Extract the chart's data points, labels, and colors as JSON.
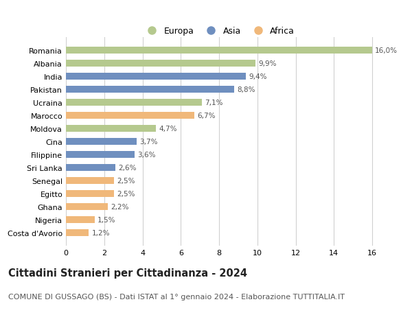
{
  "countries": [
    "Romania",
    "Albania",
    "India",
    "Pakistan",
    "Ucraina",
    "Marocco",
    "Moldova",
    "Cina",
    "Filippine",
    "Sri Lanka",
    "Senegal",
    "Egitto",
    "Ghana",
    "Nigeria",
    "Costa d'Avorio"
  ],
  "values": [
    16.0,
    9.9,
    9.4,
    8.8,
    7.1,
    6.7,
    4.7,
    3.7,
    3.6,
    2.6,
    2.5,
    2.5,
    2.2,
    1.5,
    1.2
  ],
  "labels": [
    "16,0%",
    "9,9%",
    "9,4%",
    "8,8%",
    "7,1%",
    "6,7%",
    "4,7%",
    "3,7%",
    "3,6%",
    "2,6%",
    "2,5%",
    "2,5%",
    "2,2%",
    "1,5%",
    "1,2%"
  ],
  "continents": [
    "Europa",
    "Europa",
    "Asia",
    "Asia",
    "Europa",
    "Africa",
    "Europa",
    "Asia",
    "Asia",
    "Asia",
    "Africa",
    "Africa",
    "Africa",
    "Africa",
    "Africa"
  ],
  "colors": {
    "Europa": "#b5c98e",
    "Asia": "#6f8fbf",
    "Africa": "#f0b87a"
  },
  "legend_entries": [
    "Europa",
    "Asia",
    "Africa"
  ],
  "title": "Cittadini Stranieri per Cittadinanza - 2024",
  "subtitle": "COMUNE DI GUSSAGO (BS) - Dati ISTAT al 1° gennaio 2024 - Elaborazione TUTTITALIA.IT",
  "xlim": [
    0,
    17
  ],
  "xticks": [
    0,
    2,
    4,
    6,
    8,
    10,
    12,
    14,
    16
  ],
  "background_color": "#ffffff",
  "grid_color": "#d0d0d0",
  "bar_height": 0.55,
  "title_fontsize": 10.5,
  "subtitle_fontsize": 8,
  "label_fontsize": 7.5,
  "tick_fontsize": 8,
  "legend_fontsize": 9
}
